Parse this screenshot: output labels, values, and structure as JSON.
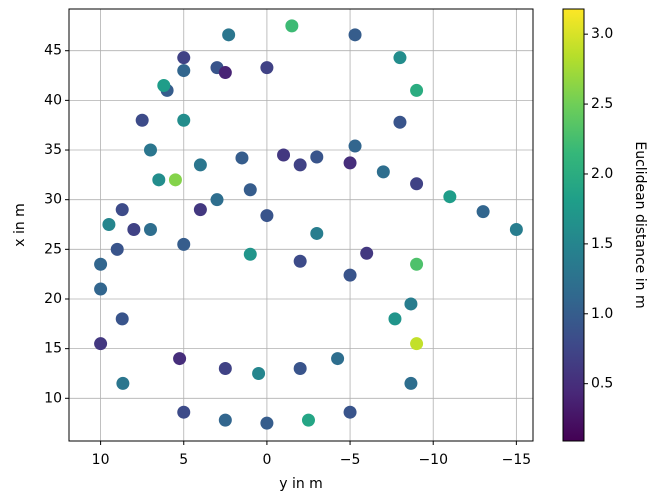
{
  "chart_data": {
    "type": "scatter",
    "x_label": "y in m",
    "y_label": "x in m",
    "colorbar_label": "Euclidean distance in m",
    "x": [
      -15,
      -13,
      -11,
      -9,
      -7,
      -5,
      -3,
      -1,
      1.5,
      4,
      6.5,
      8.7,
      10.0,
      8.7,
      5.25,
      2.5,
      0.5,
      -2,
      -4.25,
      -7.7,
      -9.0,
      -6,
      -3,
      0,
      3,
      5.5,
      7,
      7.5,
      6,
      5,
      2.3,
      -1.5,
      -5.3,
      -8.0,
      -9.0,
      -8.0,
      -5.3,
      -2,
      1,
      4,
      7,
      9,
      10,
      10,
      8.66,
      5,
      2.5,
      0,
      -2.5,
      -5,
      -8.66,
      -9,
      -8.66,
      -5,
      -2,
      1,
      5,
      8,
      9.5,
      5,
      6.2,
      5,
      3,
      0,
      2.5
    ],
    "y": [
      27,
      28.8,
      30.3,
      31.6,
      32.8,
      33.7,
      34.3,
      34.5,
      34.2,
      33.5,
      32,
      29.0,
      23.5,
      18.0,
      14.0,
      13.0,
      12.5,
      13.0,
      14.0,
      18.0,
      23.5,
      24.6,
      26.6,
      28.4,
      30.0,
      32.0,
      35,
      38,
      41,
      44.3,
      46.6,
      47.5,
      46.6,
      44.3,
      41.0,
      37.8,
      35.4,
      33.5,
      31.0,
      29.0,
      27,
      25,
      21,
      15.5,
      11.5,
      8.6,
      7.8,
      7.5,
      7.8,
      8.6,
      11.5,
      15.5,
      19.5,
      22.4,
      23.8,
      24.5,
      25.5,
      27,
      27.5,
      38,
      41.5,
      43,
      43.3,
      43.3,
      42.8
    ],
    "c": [
      1.4,
      1.1,
      1.8,
      0.7,
      1.2,
      0.5,
      0.9,
      0.6,
      1.0,
      1.3,
      1.6,
      0.8,
      1.1,
      0.9,
      0.5,
      0.7,
      1.5,
      0.9,
      1.2,
      1.7,
      2.3,
      0.6,
      1.4,
      0.9,
      1.2,
      2.6,
      1.3,
      0.8,
      1.0,
      0.7,
      1.3,
      2.2,
      1.0,
      1.6,
      2.0,
      0.9,
      1.1,
      0.7,
      1.0,
      0.6,
      1.2,
      0.9,
      1.1,
      0.6,
      1.3,
      0.8,
      1.1,
      1.0,
      1.9,
      0.9,
      1.2,
      2.9,
      1.4,
      0.9,
      0.8,
      1.7,
      1.0,
      0.7,
      1.5,
      1.6,
      1.8,
      1.1,
      0.9,
      0.7,
      0.4
    ],
    "xlim": [
      11.9,
      -16.0
    ],
    "ylim": [
      5.7,
      49.2
    ],
    "clim": [
      0.09,
      3.18
    ],
    "xticks": [
      10,
      5,
      0,
      {
        "value": -5,
        "label": "−5"
      },
      {
        "value": -10,
        "label": "−10"
      },
      {
        "value": -15,
        "label": "−15"
      }
    ],
    "yticks": [
      10,
      15,
      20,
      25,
      30,
      35,
      40,
      45
    ],
    "cticks": [
      0.5,
      {
        "value": 1,
        "label": "1.0"
      },
      1.5,
      {
        "value": 2,
        "label": "2.0"
      },
      2.5,
      {
        "value": 3,
        "label": "3.0"
      }
    ],
    "grid": true,
    "colormap": [
      "#440154",
      "#482878",
      "#3e4989",
      "#31688e",
      "#26828e",
      "#1f9e89",
      "#35b779",
      "#6ece58",
      "#b5de2b",
      "#fde725"
    ]
  }
}
